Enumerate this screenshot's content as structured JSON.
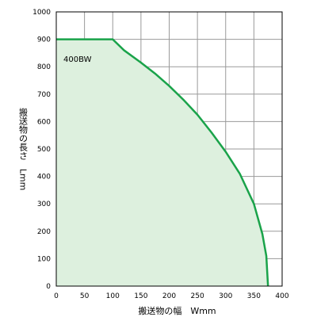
{
  "chart_data": {
    "type": "area",
    "title": "",
    "xlabel": "搬送物の幅　Wmm",
    "ylabel": "搬送物の長さ　Lmm",
    "xlim": [
      0,
      400
    ],
    "ylim": [
      0,
      1000
    ],
    "x_ticks": [
      "0",
      "50",
      "100",
      "150",
      "200",
      "250",
      "300",
      "350",
      "400"
    ],
    "y_ticks": [
      "0",
      "100",
      "200",
      "300",
      "400",
      "500",
      "600",
      "700",
      "800",
      "900",
      "1000"
    ],
    "grid": true,
    "series": [
      {
        "name": "400BW",
        "color": "#1aa34a",
        "fill": "#ddf0de",
        "points": [
          [
            0,
            900
          ],
          [
            100,
            900
          ],
          [
            120,
            860
          ],
          [
            150,
            815
          ],
          [
            175,
            775
          ],
          [
            200,
            730
          ],
          [
            225,
            680
          ],
          [
            250,
            625
          ],
          [
            275,
            560
          ],
          [
            300,
            490
          ],
          [
            325,
            410
          ],
          [
            350,
            300
          ],
          [
            365,
            190
          ],
          [
            372,
            110
          ],
          [
            375,
            0
          ]
        ]
      }
    ]
  }
}
